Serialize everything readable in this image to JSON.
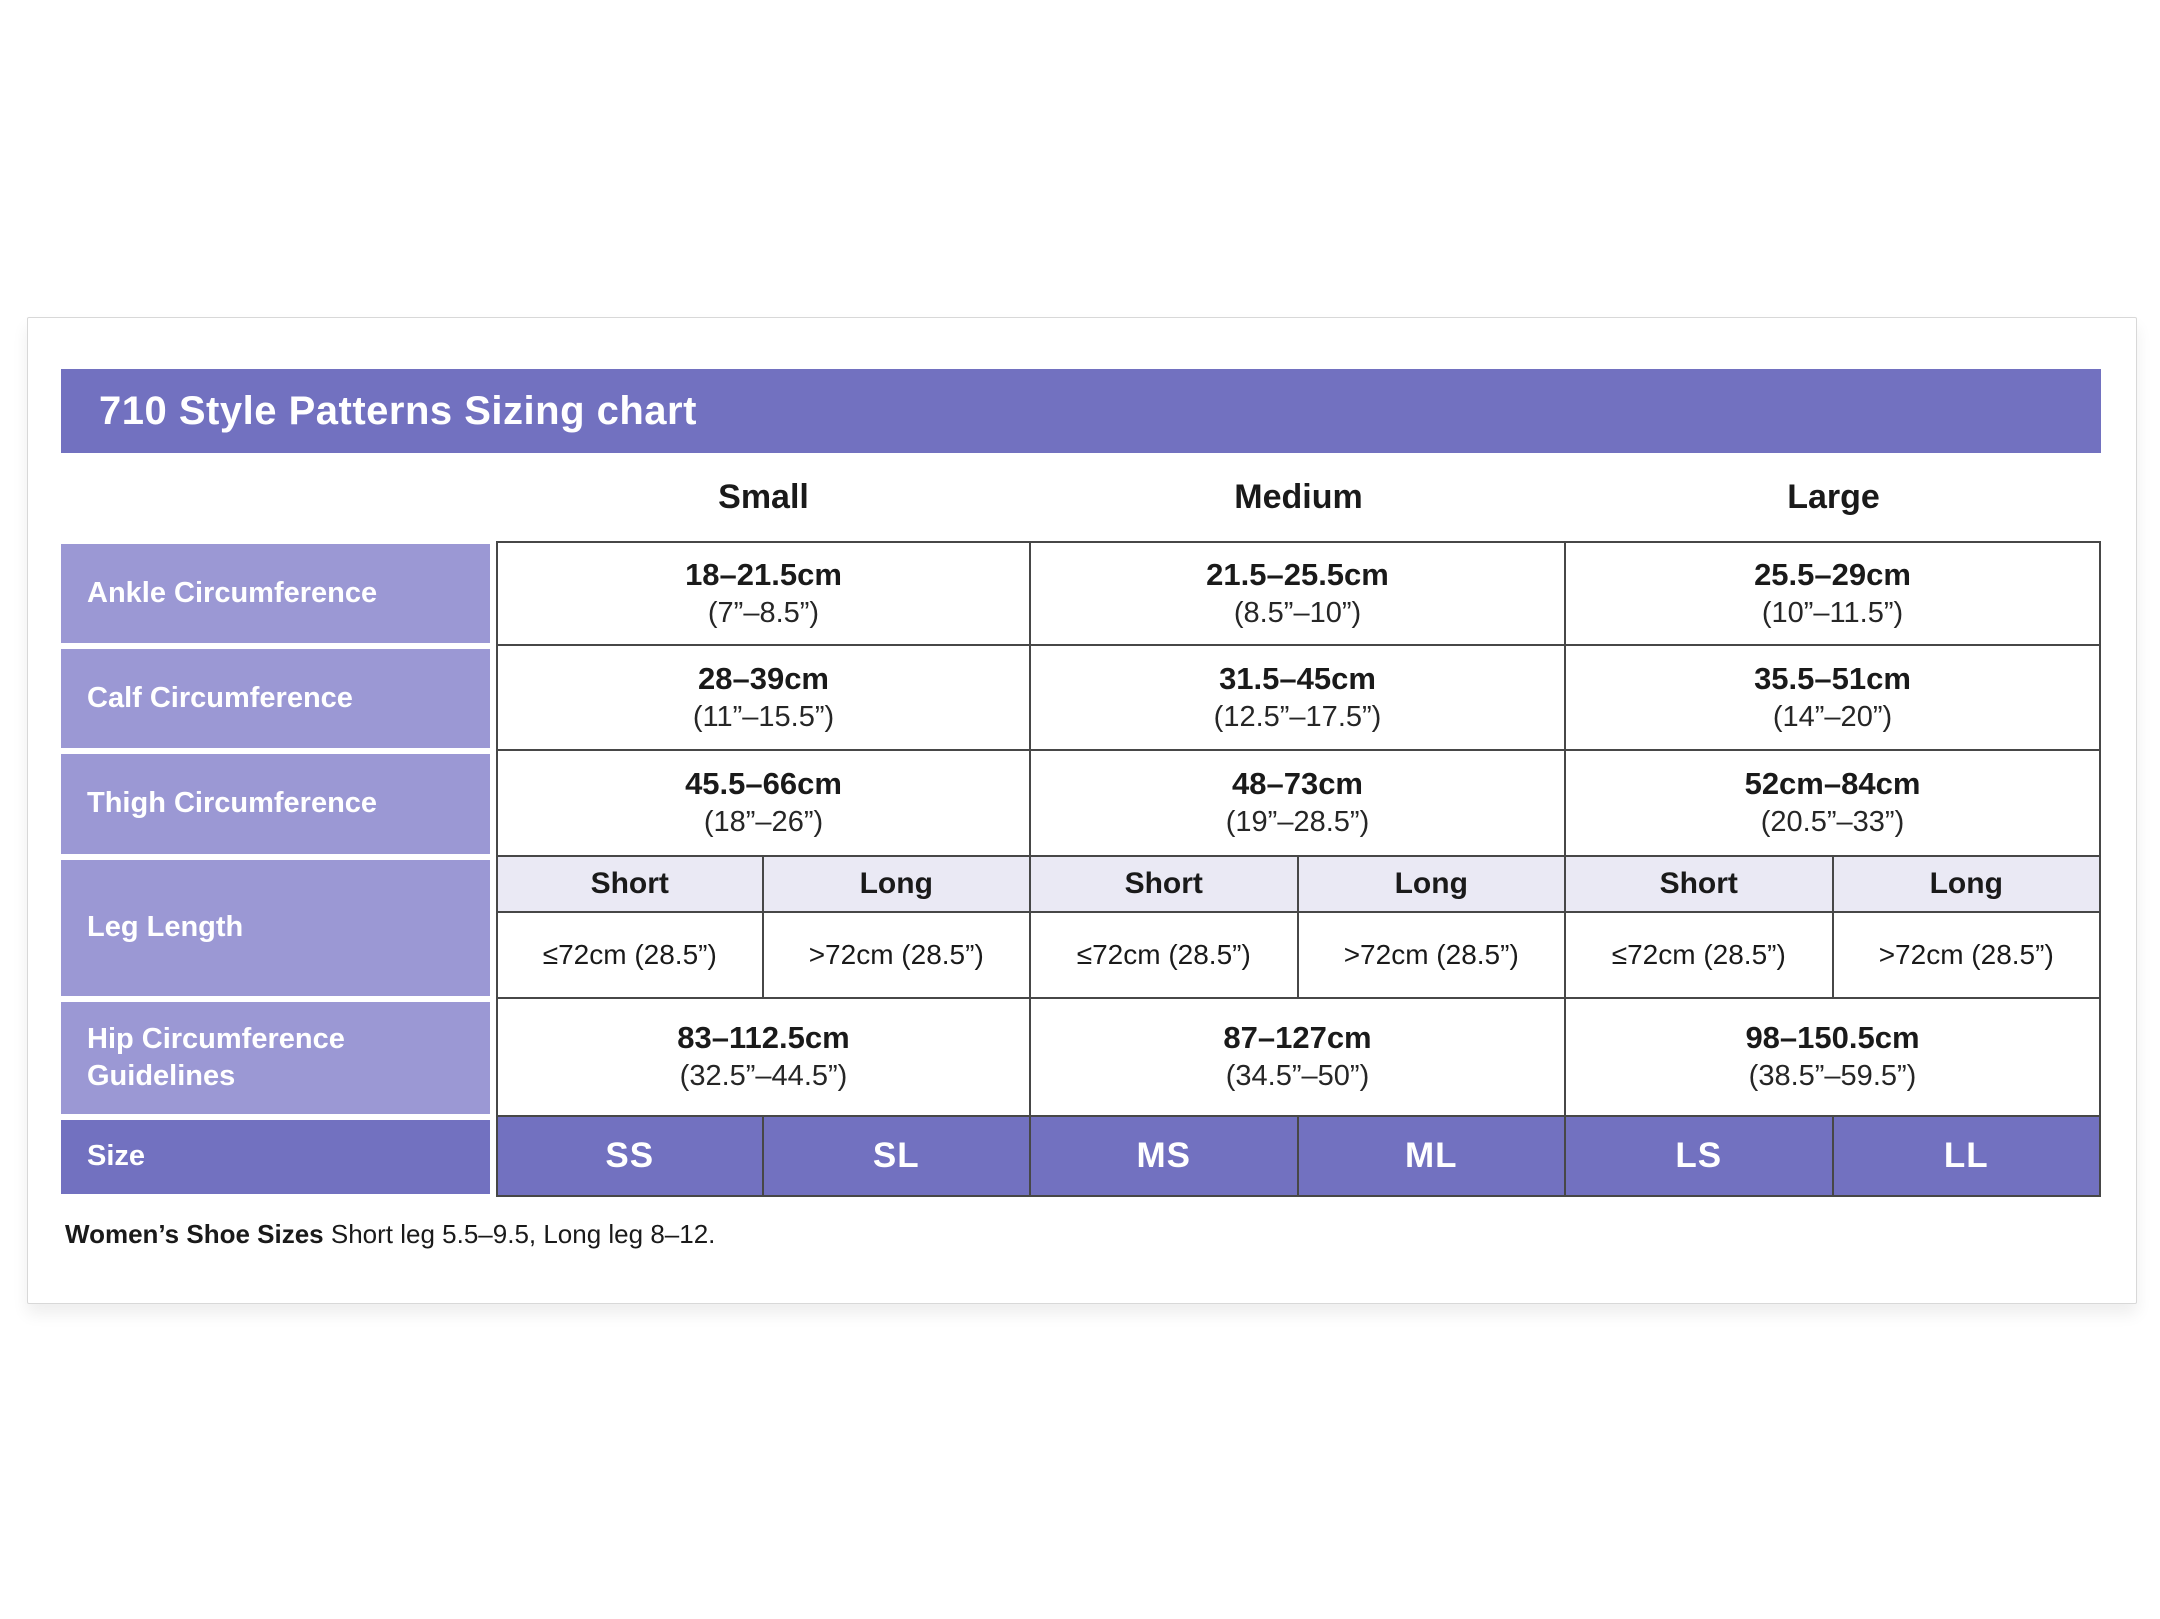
{
  "title": "710 Style Patterns Sizing chart",
  "size_headers": [
    "Small",
    "Medium",
    "Large"
  ],
  "rows": [
    {
      "label": "Ankle Circumference",
      "values": [
        {
          "cm": "18–21.5cm",
          "in": "(7”–8.5”)"
        },
        {
          "cm": "21.5–25.5cm",
          "in": "(8.5”–10”)"
        },
        {
          "cm": "25.5–29cm",
          "in": "(10”–11.5”)"
        }
      ]
    },
    {
      "label": "Calf Circumference",
      "values": [
        {
          "cm": "28–39cm",
          "in": "(11”–15.5”)"
        },
        {
          "cm": "31.5–45cm",
          "in": "(12.5”–17.5”)"
        },
        {
          "cm": "35.5–51cm",
          "in": "(14”–20”)"
        }
      ]
    },
    {
      "label": "Thigh Circumference",
      "values": [
        {
          "cm": "45.5–66cm",
          "in": "(18”–26”)"
        },
        {
          "cm": "48–73cm",
          "in": "(19”–28.5”)"
        },
        {
          "cm": "52cm–84cm",
          "in": "(20.5”–33”)"
        }
      ]
    },
    {
      "label": "Hip Circumference\nGuidelines",
      "values": [
        {
          "cm": "83–112.5cm",
          "in": "(32.5”–44.5”)"
        },
        {
          "cm": "87–127cm",
          "in": "(34.5”–50”)"
        },
        {
          "cm": "98–150.5cm",
          "in": "(38.5”–59.5”)"
        }
      ]
    }
  ],
  "leg_length": {
    "label": "Leg Length",
    "sub_headers": [
      "Short",
      "Long",
      "Short",
      "Long",
      "Short",
      "Long"
    ],
    "values": [
      "≤72cm (28.5”)",
      ">72cm (28.5”)",
      "≤72cm (28.5”)",
      ">72cm (28.5”)",
      "≤72cm (28.5”)",
      ">72cm (28.5”)"
    ]
  },
  "size_row": {
    "label": "Size",
    "codes": [
      "SS",
      "SL",
      "MS",
      "ML",
      "LS",
      "LL"
    ]
  },
  "footnote": {
    "bold": "Women’s Shoe Sizes",
    "rest": " Short leg 5.5–9.5, Long leg 8–12."
  },
  "colors": {
    "purple_dark": "#7271C0",
    "purple_light": "#9B98D4",
    "lavender": "#EAE9F4",
    "border": "#474747"
  }
}
